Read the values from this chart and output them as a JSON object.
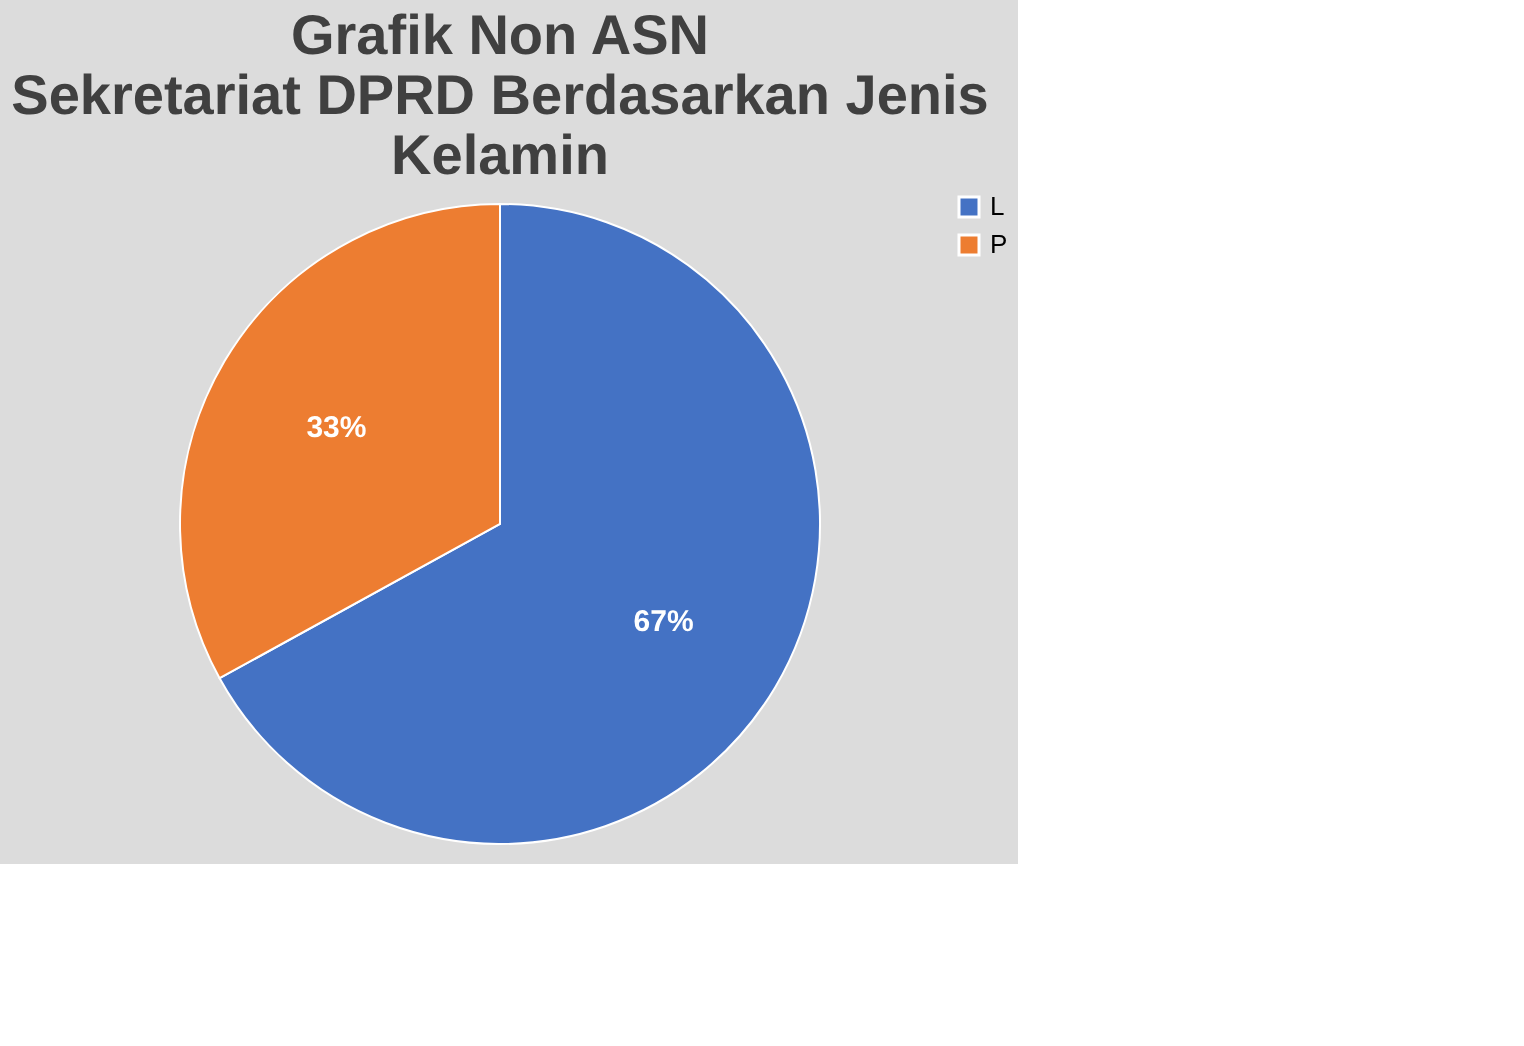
{
  "chart_data": {
    "type": "pie",
    "title": [
      "Grafik Non ASN",
      "Sekretariat DPRD Berdasarkan Jenis",
      "Kelamin"
    ],
    "categories": [
      "L",
      "P"
    ],
    "values": [
      67,
      33
    ],
    "colors": [
      "#4472c4",
      "#ed7d31"
    ],
    "value_labels": [
      "67%",
      "33%"
    ],
    "legend": "right"
  }
}
